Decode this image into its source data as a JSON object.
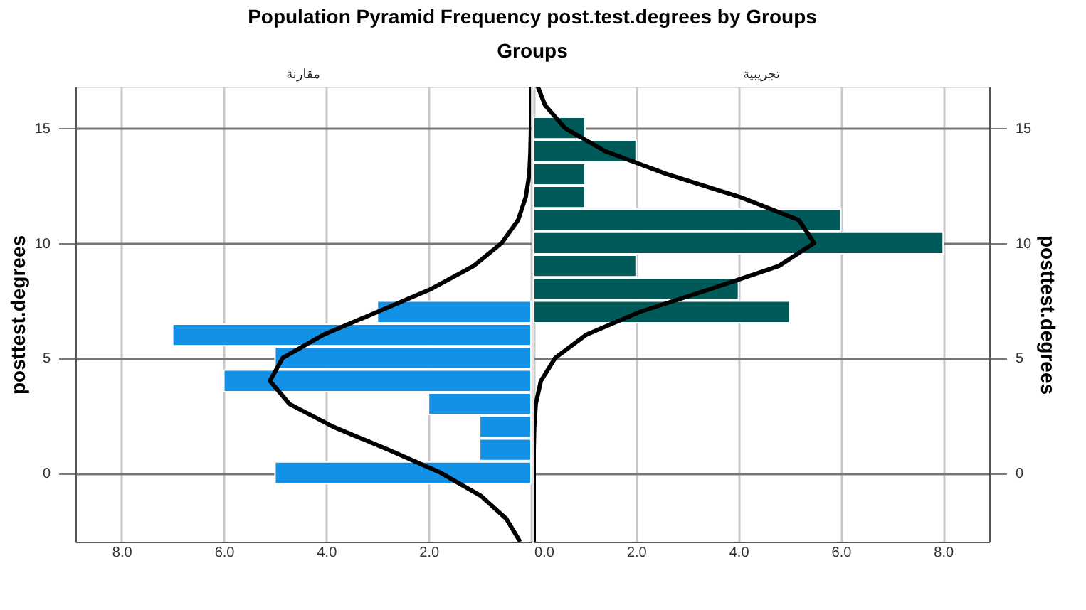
{
  "chart_data": [
    {
      "type": "bar",
      "orientation": "horizontal",
      "title": "Population Pyramid Frequency post.test.degrees  by Groups",
      "subtitle": "Groups",
      "annotations": [
        "مقارنة"
      ],
      "ylabel": "posttest.degrees",
      "x": [
        7,
        6,
        5,
        4,
        3,
        2,
        1,
        0
      ],
      "series": [
        {
          "color": "#1391e6",
          "values": [
            3,
            7,
            5,
            6,
            2,
            1,
            1,
            5
          ]
        },
        {
          "type": "line",
          "color": "#000000",
          "x": [
            -3,
            -2,
            -1,
            0,
            1,
            2,
            3,
            4,
            5,
            6,
            7,
            8,
            9,
            10,
            11,
            12,
            13,
            14,
            15,
            16.8
          ],
          "values": [
            0.21,
            0.48,
            0.98,
            1.76,
            2.78,
            3.86,
            4.72,
            5.1,
            4.85,
            4.06,
            3.0,
            1.95,
            1.12,
            0.57,
            0.25,
            0.1,
            0.03,
            0.01,
            0,
            0
          ]
        }
      ],
      "xlim": [
        8.9,
        0
      ],
      "xticks": [
        {
          "value": 8,
          "label": "8.0"
        },
        {
          "value": 6,
          "label": "6.0"
        },
        {
          "value": 4,
          "label": "4.0"
        },
        {
          "value": 2,
          "label": "2.0"
        },
        {
          "value": 0,
          "label": null
        }
      ],
      "ylim": [
        -3,
        16.8
      ],
      "yticks": [
        0,
        5,
        10,
        15
      ],
      "grid": true,
      "legend": false
    },
    {
      "type": "bar",
      "orientation": "horizontal",
      "annotations": [
        "تجريبية"
      ],
      "ylabel": "posttest.degrees",
      "x": [
        15,
        14,
        13,
        12,
        11,
        10,
        9,
        8,
        7
      ],
      "series": [
        {
          "color": "#005a5a",
          "values": [
            1,
            2,
            1,
            1,
            6,
            8,
            2,
            4,
            5
          ]
        },
        {
          "type": "line",
          "color": "#000000",
          "x": [
            -3,
            -2,
            -1,
            0,
            1,
            2,
            3,
            4,
            5,
            6,
            7,
            8,
            9,
            10,
            11,
            12,
            13,
            14,
            15,
            16,
            16.8
          ],
          "values": [
            0,
            0,
            0,
            0,
            0,
            0.01,
            0.04,
            0.14,
            0.42,
            1.02,
            2.07,
            3.46,
            4.79,
            5.48,
            5.18,
            4.03,
            2.6,
            1.39,
            0.61,
            0.22,
            0.08
          ]
        }
      ],
      "xlim": [
        0,
        8.9
      ],
      "xticks": [
        {
          "value": 0,
          "label": "0.0"
        },
        {
          "value": 2,
          "label": "2.0"
        },
        {
          "value": 4,
          "label": "4.0"
        },
        {
          "value": 6,
          "label": "6.0"
        },
        {
          "value": 8,
          "label": "8.0"
        }
      ],
      "ylim": [
        -3,
        16.8
      ],
      "yticks": [
        0,
        5,
        10,
        15
      ],
      "grid": true,
      "legend": false
    }
  ]
}
